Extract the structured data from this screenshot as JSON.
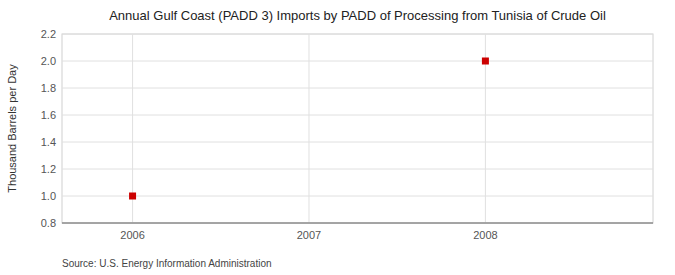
{
  "chart_data": {
    "type": "scatter",
    "title": "Annual Gulf Coast (PADD 3) Imports by PADD of Processing from Tunisia of Crude Oil",
    "ylabel": "Thousand Barrels per Day",
    "source": "Source: U.S. Energy Information Administration",
    "x": [
      2006,
      2008
    ],
    "values": [
      1.0,
      2.0
    ],
    "color": "#cc0000",
    "marker": "square",
    "xlim": [
      2005.6,
      2008.95
    ],
    "ylim": [
      0.8,
      2.2
    ],
    "xticks": [
      2006,
      2007,
      2008
    ],
    "yticks": [
      0.8,
      {
        "value": 1.0,
        "label": "1.0"
      },
      1.2,
      1.4,
      1.6,
      1.8,
      {
        "value": 2.0,
        "label": "2.0"
      },
      2.2
    ],
    "grid": true
  }
}
